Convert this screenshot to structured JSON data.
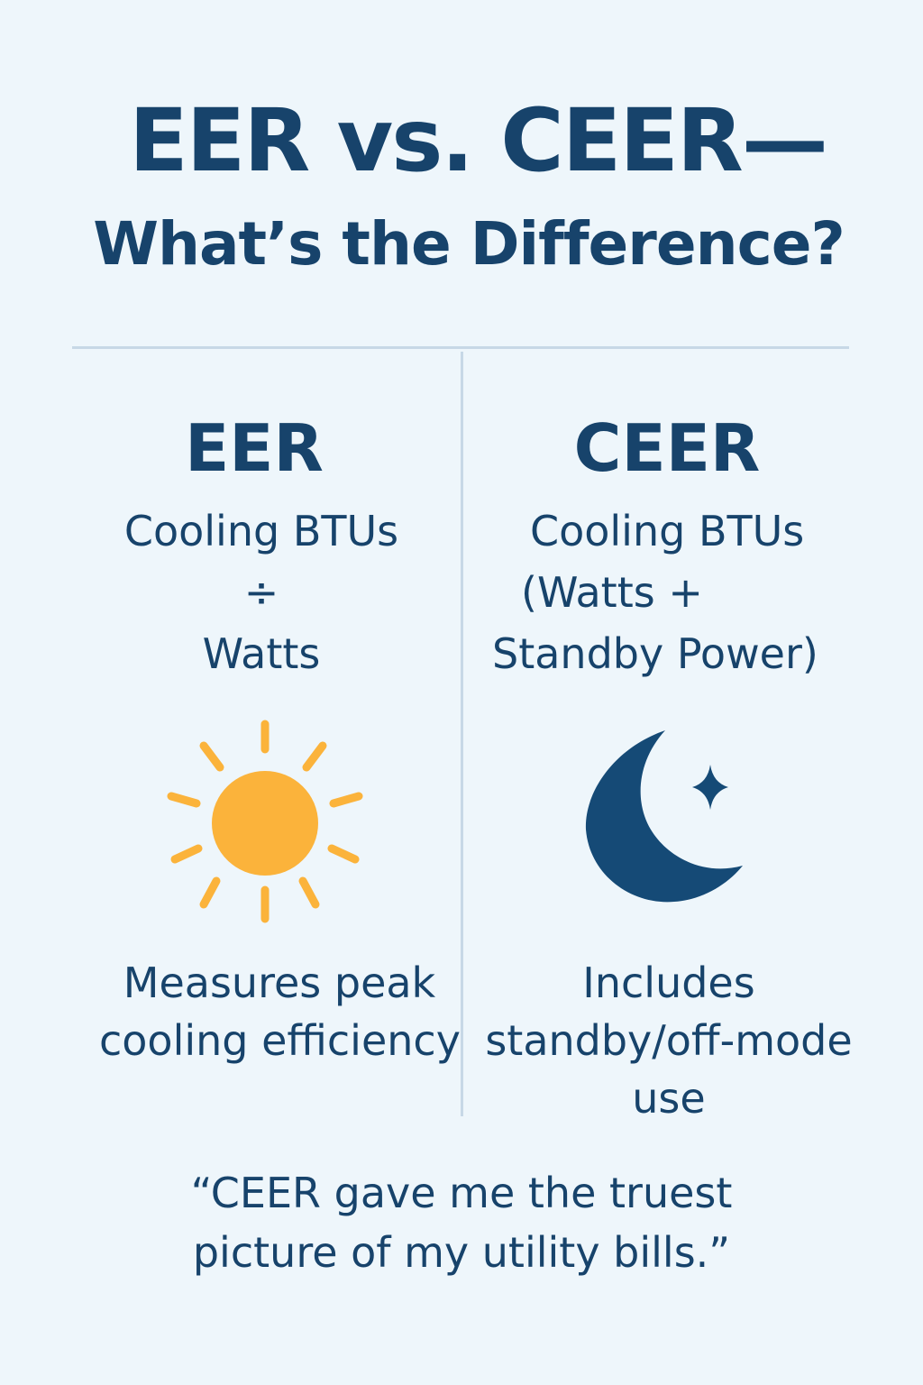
{
  "title": {
    "line1": "EER vs. CEER—",
    "line2": "What’s the Difference?"
  },
  "left": {
    "heading": "EER",
    "formula": [
      "Cooling BTUs",
      "÷",
      "Watts"
    ],
    "icon": "sun-icon",
    "description": [
      "Measures peak",
      "cooling efficiency"
    ]
  },
  "right": {
    "heading": "CEER",
    "formula": [
      "Cooling BTUs",
      "(Watts +",
      "Standby Power)"
    ],
    "icon": "moon-star-icon",
    "description": [
      "Includes",
      "standby/off-mode",
      "use"
    ]
  },
  "quote": [
    "“CEER gave me the truest",
    "picture of my utility bills.”"
  ],
  "colors": {
    "background": "#eef6fb",
    "text": "#17436b",
    "sun": "#fbb33b",
    "moon": "#154a76",
    "divider": "#c7d8e6"
  }
}
